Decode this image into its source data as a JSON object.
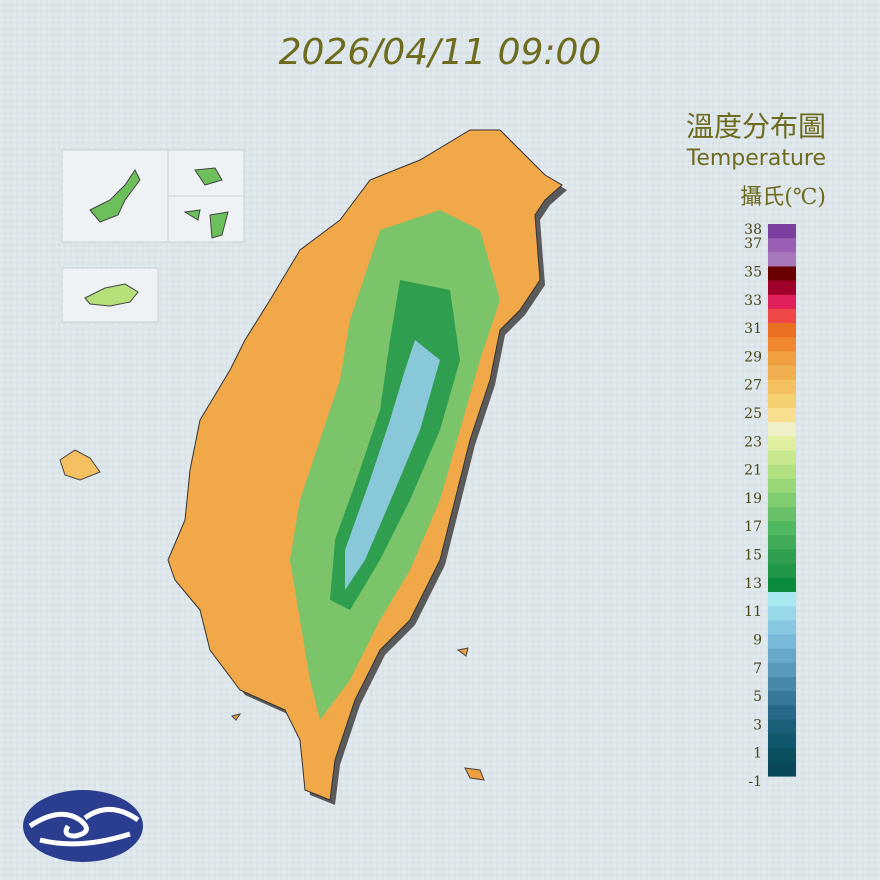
{
  "timestamp": "2026/04/11 09:00",
  "legend": {
    "title": "溫度分布圖",
    "subtitle": "Temperature",
    "unit": "攝氏(℃)",
    "labels": [
      38,
      37,
      35,
      33,
      31,
      29,
      27,
      25,
      23,
      21,
      19,
      17,
      15,
      13,
      11,
      9,
      7,
      5,
      3,
      1,
      -1
    ],
    "colors": [
      "#7b3fa0",
      "#9b5fb5",
      "#a878bc",
      "#6b0000",
      "#a0002a",
      "#e0205a",
      "#f04848",
      "#e87020",
      "#f08830",
      "#f0a040",
      "#f0b050",
      "#f5c060",
      "#f5d070",
      "#f8e090",
      "#f0f0c8",
      "#e0f0a0",
      "#c8e890",
      "#b0e080",
      "#98d878",
      "#80cc70",
      "#68c068",
      "#50b860",
      "#40ac58",
      "#30a050",
      "#209848",
      "#0a8c3c",
      "#a8e8f0",
      "#98d8e8",
      "#88c8e0",
      "#78b8d8",
      "#68a8c8",
      "#5898b8",
      "#4888a8",
      "#387898",
      "#286888",
      "#1a6078",
      "#10586c",
      "#0a5060",
      "#084858"
    ]
  }
}
